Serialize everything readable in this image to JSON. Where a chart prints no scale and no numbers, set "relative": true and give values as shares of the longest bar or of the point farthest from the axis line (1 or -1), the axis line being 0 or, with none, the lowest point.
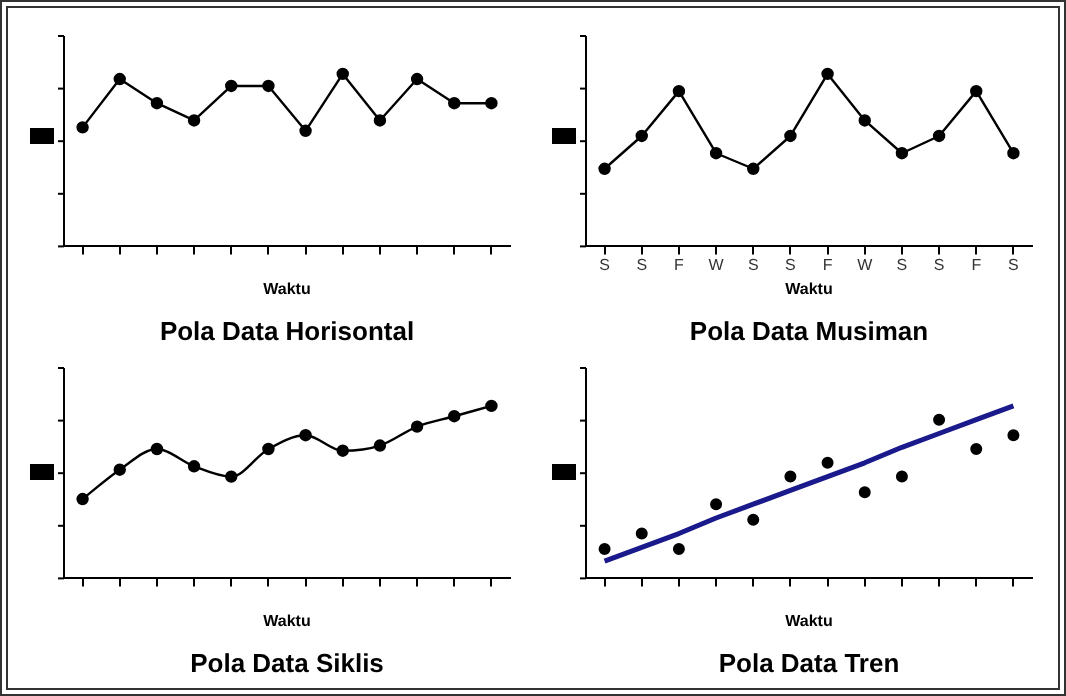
{
  "chart_data": [
    {
      "type": "line",
      "title": "Pola Data Horisontal",
      "xlabel": "Waktu",
      "relative": true,
      "categories": [
        null,
        null,
        null,
        null,
        null,
        null,
        null,
        null,
        null,
        null,
        null,
        null
      ],
      "values": [
        0.69,
        0.97,
        0.83,
        0.73,
        0.93,
        0.93,
        0.67,
        1,
        0.73,
        0.97,
        0.83,
        0.83
      ],
      "color": "#000000",
      "marker": "circle",
      "grid": false,
      "legend": false
    },
    {
      "type": "line",
      "title": "Pola Data Musiman",
      "xlabel": "Waktu",
      "relative": true,
      "categories": [
        "S",
        "S",
        "F",
        "W",
        "S",
        "S",
        "F",
        "W",
        "S",
        "S",
        "F",
        "S"
      ],
      "values": [
        0.45,
        0.64,
        0.9,
        0.54,
        0.45,
        0.64,
        1,
        0.73,
        0.54,
        0.64,
        0.9,
        0.54
      ],
      "color": "#000000",
      "marker": "circle",
      "grid": false,
      "legend": false
    },
    {
      "type": "line",
      "title": "Pola Data Siklis",
      "xlabel": "Waktu",
      "relative": true,
      "categories": [
        null,
        null,
        null,
        null,
        null,
        null,
        null,
        null,
        null,
        null,
        null,
        null
      ],
      "values": [
        0.46,
        0.63,
        0.75,
        0.65,
        0.59,
        0.75,
        0.83,
        0.74,
        0.77,
        0.88,
        0.94,
        1
      ],
      "color": "#000000",
      "marker": "circle",
      "grid": false,
      "legend": false
    },
    {
      "type": "scatter",
      "title": "Pola Data Tren",
      "xlabel": "Waktu",
      "relative": true,
      "categories": [
        null,
        null,
        null,
        null,
        null,
        null,
        null,
        null,
        null,
        null,
        null,
        null
      ],
      "grid": false,
      "legend": false,
      "marker": "circle",
      "series": [
        {
          "type": "scatter",
          "color": "#000000",
          "values": [
            0.17,
            0.26,
            0.17,
            0.43,
            0.34,
            0.59,
            0.67,
            0.5,
            0.59,
            0.92,
            0.75,
            0.83
          ]
        },
        {
          "type": "line",
          "color": "#1a1a8c",
          "marker": "none",
          "values": [
            0.1,
            0.18,
            0.26,
            0.35,
            0.43,
            0.51,
            0.59,
            0.67,
            0.76,
            0.84,
            0.92,
            1
          ]
        }
      ]
    }
  ]
}
